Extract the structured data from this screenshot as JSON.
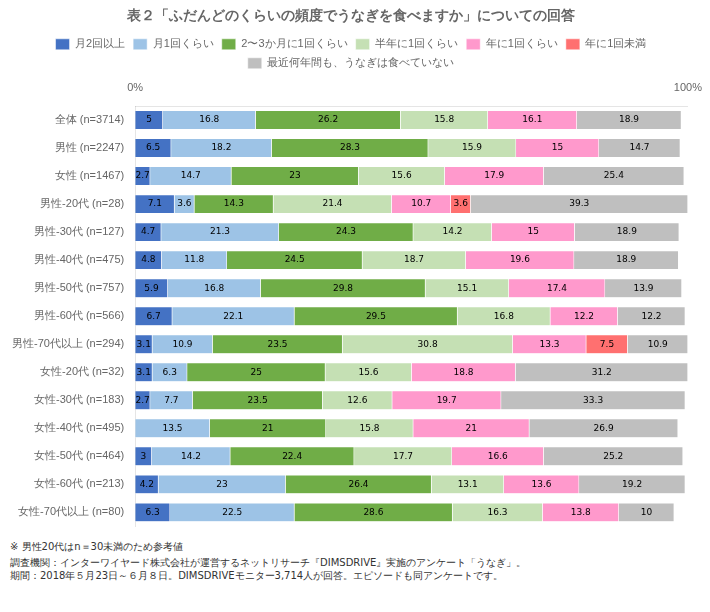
{
  "chart_data": {
    "type": "bar",
    "orientation": "horizontal",
    "stacked": true,
    "title": "表２「ふだんどのくらいの頻度でうなぎを食べますか」についての回答",
    "categories": [
      "全体 (n=3714)",
      "男性 (n=2247)",
      "女性 (n=1467)",
      "男性-20代 (n=28)",
      "男性-30代 (n=127)",
      "男性-40代 (n=475)",
      "男性-50代 (n=757)",
      "男性-60代 (n=566)",
      "男性-70代以上 (n=294)",
      "女性-20代 (n=32)",
      "女性-30代 (n=183)",
      "女性-40代 (n=495)",
      "女性-50代 (n=464)",
      "女性-60代 (n=213)",
      "女性-70代以上 (n=80)"
    ],
    "series": [
      {
        "name": "月2回以上",
        "color": "#4472C4",
        "values": [
          5.0,
          6.5,
          2.7,
          7.1,
          4.7,
          4.8,
          5.9,
          6.7,
          3.1,
          3.1,
          2.7,
          null,
          3.0,
          4.2,
          6.3
        ]
      },
      {
        "name": "月1回くらい",
        "color": "#9DC3E6",
        "values": [
          16.8,
          18.2,
          14.7,
          3.6,
          21.3,
          11.8,
          16.8,
          22.1,
          10.9,
          6.3,
          7.7,
          13.5,
          14.2,
          23.0,
          22.5
        ]
      },
      {
        "name": "2〜3か月に1回くらい",
        "color": "#70AD47",
        "values": [
          26.2,
          28.3,
          23.0,
          14.3,
          24.3,
          24.5,
          29.8,
          29.5,
          23.5,
          25.0,
          23.5,
          21.0,
          22.4,
          26.4,
          28.6
        ]
      },
      {
        "name": "半年に1回くらい",
        "color": "#C5E0B4",
        "values": [
          15.8,
          15.9,
          15.6,
          21.4,
          14.2,
          18.7,
          15.1,
          16.8,
          30.8,
          15.6,
          12.6,
          15.8,
          17.7,
          13.1,
          16.3
        ]
      },
      {
        "name": "年に1回くらい",
        "color": "#FF99CC",
        "values": [
          16.1,
          15.0,
          17.9,
          10.7,
          15.0,
          19.6,
          17.4,
          12.2,
          13.3,
          18.8,
          19.7,
          21.0,
          16.6,
          13.6,
          13.8
        ]
      },
      {
        "name": "年に1回未満",
        "color": "#FF7070",
        "values": [
          null,
          null,
          null,
          3.6,
          null,
          null,
          null,
          null,
          7.5,
          null,
          null,
          null,
          null,
          null,
          null
        ]
      },
      {
        "name": "最近何年間も、うなぎは食べていない",
        "color": "#BFBFBF",
        "values": [
          18.9,
          14.7,
          25.4,
          39.3,
          18.9,
          18.9,
          13.9,
          12.2,
          10.9,
          31.2,
          33.3,
          26.9,
          25.2,
          19.2,
          10.0
        ]
      }
    ],
    "xlim": [
      0,
      100
    ],
    "xticks": [
      {
        "value": 0,
        "label": "0%"
      },
      {
        "value": 100,
        "label": "100%"
      }
    ],
    "grid": false,
    "legend": "top",
    "data_labels": true,
    "annotations": [
      "※ 男性20代はn＝30未満のため参考値",
      "調査機関：インターワイヤード株式会社が運営するネットリサーチ『DIMSDRIVE』実施のアンケート「うなぎ」。\n期間：2018年５月23日～６月８日。DIMSDRIVEモニター3,714人が回答。エピソードも同アンケートです。"
    ]
  }
}
